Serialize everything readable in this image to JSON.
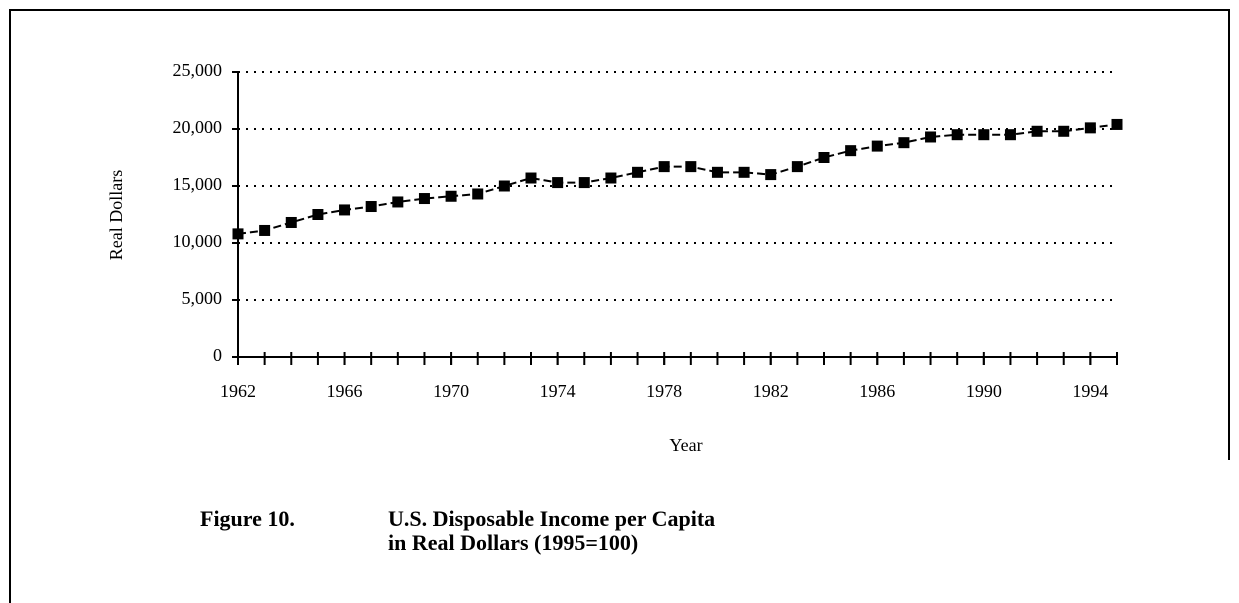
{
  "chart_data": {
    "type": "line",
    "y_label": "Real Dollars",
    "x_label": "Year",
    "caption_label": "Figure 10.",
    "caption": [
      "U.S. Disposable Income per Capita",
      "in Real Dollars (1995=100)"
    ],
    "x": [
      1962,
      1963,
      1964,
      1965,
      1966,
      1967,
      1968,
      1969,
      1970,
      1971,
      1972,
      1973,
      1974,
      1975,
      1976,
      1977,
      1978,
      1979,
      1980,
      1981,
      1982,
      1983,
      1984,
      1985,
      1986,
      1987,
      1988,
      1989,
      1990,
      1991,
      1992,
      1993,
      1994,
      1995
    ],
    "series": [
      {
        "color": "#000000",
        "values": [
          10800,
          11100,
          11800,
          12500,
          12900,
          13200,
          13600,
          13900,
          14100,
          14300,
          15000,
          15700,
          15300,
          15300,
          15700,
          16200,
          16700,
          16700,
          16200,
          16200,
          16000,
          16700,
          17500,
          18100,
          18500,
          18800,
          19300,
          19500,
          19500,
          19500,
          19800,
          19800,
          20100,
          20400
        ]
      }
    ],
    "xlim": [
      1962,
      1995
    ],
    "xticks": [
      1962,
      1966,
      1970,
      1974,
      1978,
      1982,
      1986,
      1990,
      1994
    ],
    "ylim": [
      0,
      25000
    ],
    "yticks": [
      0,
      {
        "value": 5000,
        "label": "5,000"
      },
      {
        "value": 10000,
        "label": "10,000"
      },
      {
        "value": 15000,
        "label": "15,000"
      },
      {
        "value": 20000,
        "label": "20,000"
      },
      {
        "value": 25000,
        "label": "25,000"
      }
    ],
    "grid": true
  }
}
